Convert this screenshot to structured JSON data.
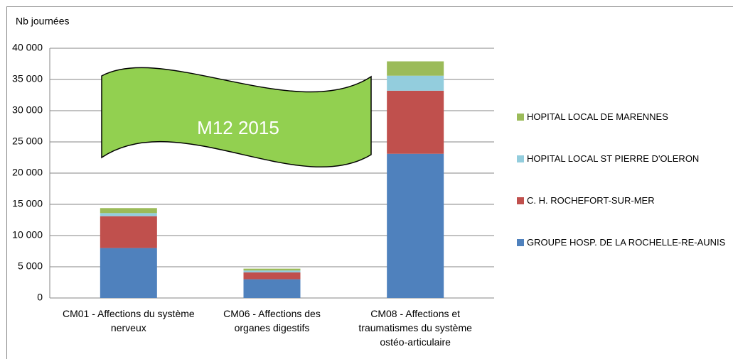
{
  "chart_data": {
    "type": "stacked_bar",
    "y_axis_label": "Nb journées",
    "annotation": "M12 2015",
    "categories": [
      "CM01 - Affections du système nerveux",
      "CM06 - Affections des organes digestifs",
      "CM08 - Affections et traumatismes du système ostéo-articulaire"
    ],
    "series": [
      {
        "name": "GROUPE HOSP. DE LA ROCHELLE-RE-AUNIS",
        "color": "#4f81bd",
        "values": [
          8000,
          3000,
          23100
        ]
      },
      {
        "name": "C. H. ROCHEFORT-SUR-MER",
        "color": "#c0504d",
        "values": [
          5100,
          1100,
          10100
        ]
      },
      {
        "name": "HOPITAL LOCAL ST PIERRE D'OLERON",
        "color": "#93cddd",
        "values": [
          500,
          300,
          2400
        ]
      },
      {
        "name": "HOPITAL LOCAL DE MARENNES",
        "color": "#9bbb59",
        "values": [
          800,
          300,
          2300
        ]
      }
    ],
    "ylim": [
      0,
      40000
    ],
    "yticks": [
      0,
      {
        "value": 5000,
        "label": "5 000"
      },
      {
        "value": 10000,
        "label": "10 000"
      },
      {
        "value": 15000,
        "label": "15 000"
      },
      {
        "value": 20000,
        "label": "20 000"
      },
      {
        "value": 25000,
        "label": "25 000"
      },
      {
        "value": 30000,
        "label": "30 000"
      },
      {
        "value": 35000,
        "label": "35 000"
      },
      {
        "value": 40000,
        "label": "40 000"
      }
    ],
    "grid": true,
    "legend": "right"
  }
}
